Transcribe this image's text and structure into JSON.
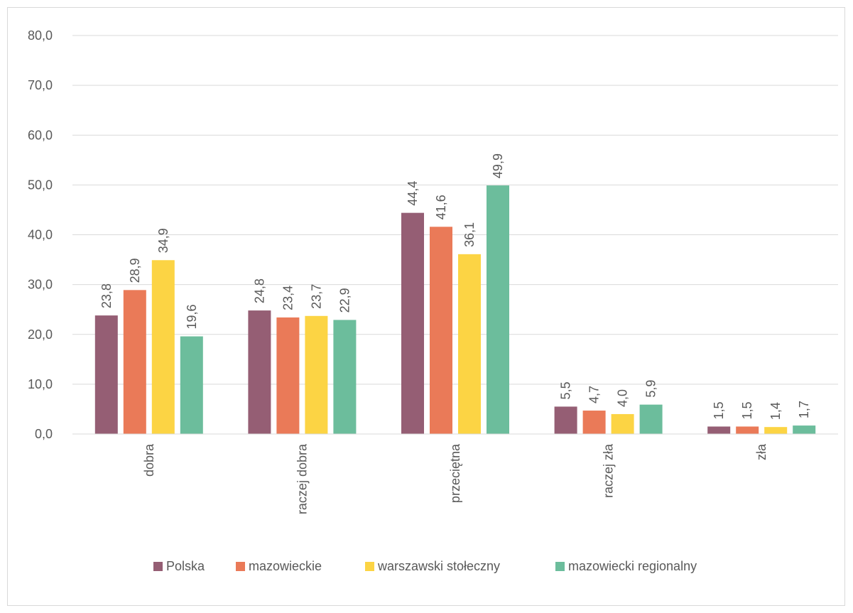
{
  "chart_data": {
    "type": "bar",
    "title": "",
    "xlabel": "",
    "ylabel": "",
    "ylim": [
      0,
      80
    ],
    "yticks": [
      0,
      10,
      20,
      30,
      40,
      50,
      60,
      70,
      80
    ],
    "ytick_labels": [
      "0,0",
      "10,0",
      "20,0",
      "30,0",
      "40,0",
      "50,0",
      "60,0",
      "70,0",
      "80,0"
    ],
    "grid": true,
    "legend_position": "bottom",
    "categories": [
      "dobra",
      "raczej dobra",
      "przeciętna",
      "raczej zła",
      "zła"
    ],
    "series": [
      {
        "name": "Polska",
        "color": "#955e74",
        "values": [
          23.8,
          24.8,
          44.4,
          5.5,
          1.5
        ],
        "labels": [
          "23,8",
          "24,8",
          "44,4",
          "5,5",
          "1,5"
        ]
      },
      {
        "name": "mazowieckie",
        "color": "#ea7a58",
        "values": [
          28.9,
          23.4,
          41.6,
          4.7,
          1.5
        ],
        "labels": [
          "28,9",
          "23,4",
          "41,6",
          "4,7",
          "1,5"
        ]
      },
      {
        "name": "warszawski stołeczny",
        "color": "#fcd444",
        "values": [
          34.9,
          23.7,
          36.1,
          4.0,
          1.4
        ],
        "labels": [
          "34,9",
          "23,7",
          "36,1",
          "4,0",
          "1,4"
        ]
      },
      {
        "name": "mazowiecki regionalny",
        "color": "#6cbd9c",
        "values": [
          19.6,
          22.9,
          49.9,
          5.9,
          1.7
        ],
        "labels": [
          "19,6",
          "22,9",
          "49,9",
          "5,9",
          "1,7"
        ]
      }
    ]
  }
}
